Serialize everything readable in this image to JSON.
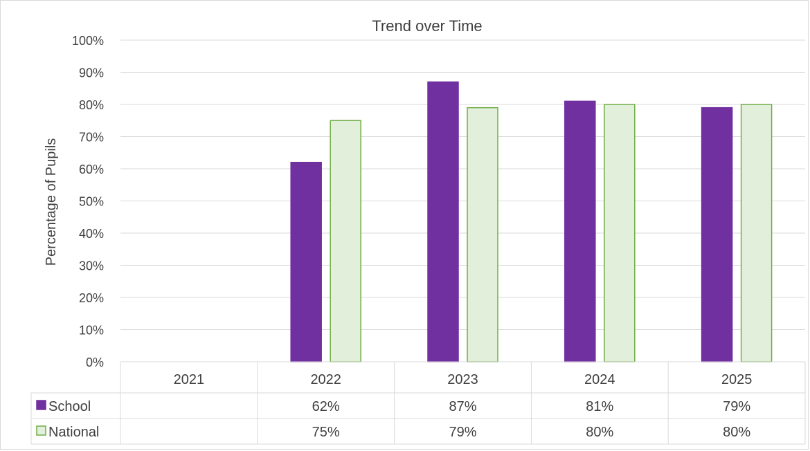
{
  "chart_data": {
    "type": "bar",
    "title": "Trend over Time",
    "xlabel": "",
    "ylabel": "Percentage of Pupils",
    "categories": [
      "2021",
      "2022",
      "2023",
      "2024",
      "2025"
    ],
    "ylim": [
      0,
      100
    ],
    "ytick_step": 10,
    "ytick_suffix": "%",
    "grid": true,
    "legend": "data-table",
    "series": [
      {
        "name": "School",
        "values": [
          null,
          62,
          87,
          81,
          79
        ],
        "labels": [
          "",
          "62%",
          "87%",
          "81%",
          "79%"
        ],
        "fill": "#7030a0",
        "stroke": "#7030a0"
      },
      {
        "name": "National",
        "values": [
          null,
          75,
          79,
          80,
          80
        ],
        "labels": [
          "",
          "75%",
          "79%",
          "80%",
          "80%"
        ],
        "fill": "#e2efda",
        "stroke": "#70ad47"
      }
    ]
  }
}
